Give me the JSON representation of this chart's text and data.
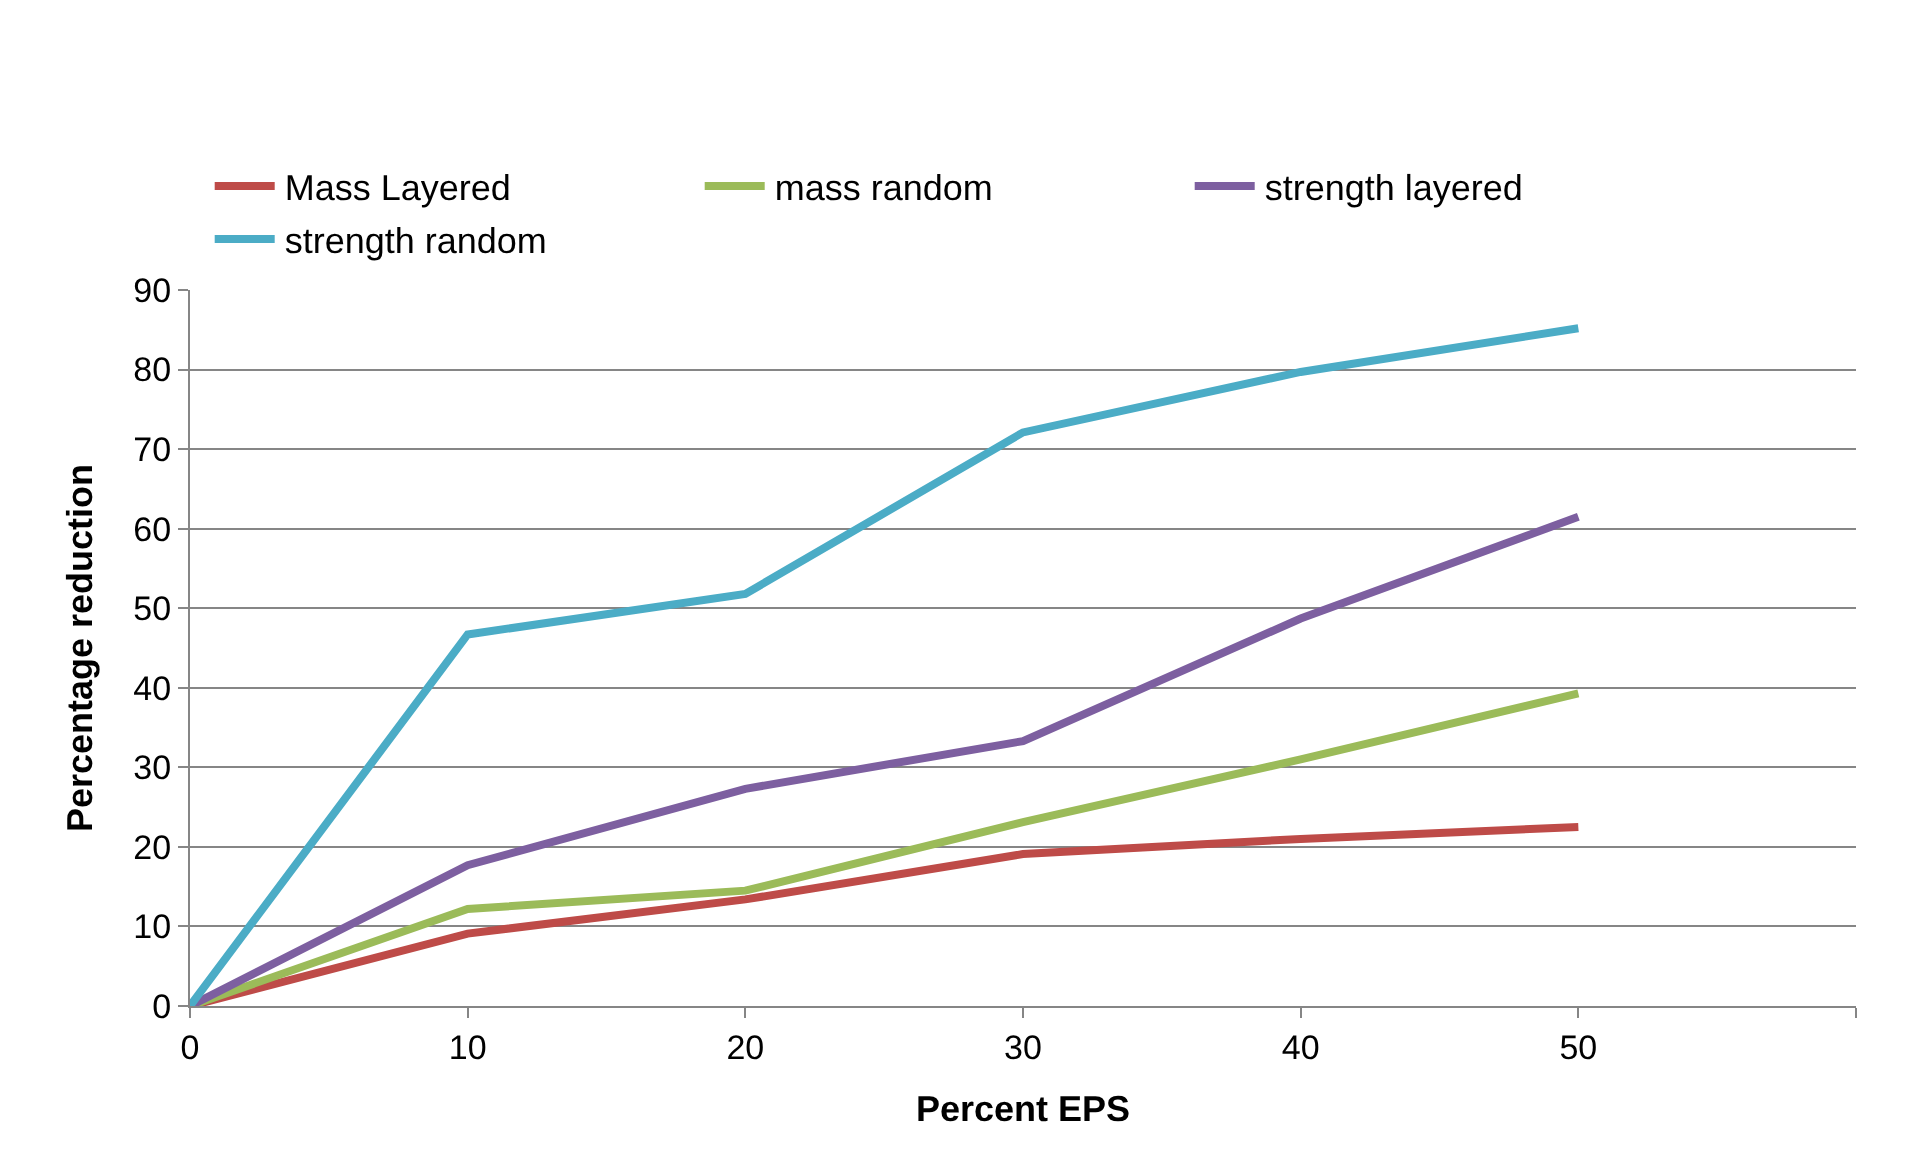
{
  "chart_data": {
    "type": "line",
    "xlabel": "Percent EPS",
    "ylabel": "Percentage reduction",
    "x": [
      0,
      10,
      20,
      30,
      40,
      50
    ],
    "series": [
      {
        "name": "Mass Layered",
        "color": "#be4b48",
        "values": [
          0,
          9.1,
          13.4,
          19.1,
          21,
          22.5
        ]
      },
      {
        "name": "mass random",
        "color": "#9bbb59",
        "values": [
          0,
          12.2,
          14.5,
          23.1,
          31,
          39.3
        ]
      },
      {
        "name": "strength layered",
        "color": "#7d5fa0",
        "values": [
          0,
          17.7,
          27.3,
          33.3,
          48.7,
          61.5
        ]
      },
      {
        "name": "strength random",
        "color": "#4bacc6",
        "values": [
          0,
          46.7,
          51.8,
          72.1,
          79.7,
          85.2
        ]
      }
    ],
    "xlim": [
      0,
      60
    ],
    "xticks": [
      0,
      10,
      20,
      30,
      40,
      50,
      {
        "value": 60,
        "label": null
      }
    ],
    "ylim": [
      0,
      90
    ],
    "yticks": [
      0,
      10,
      20,
      30,
      40,
      50,
      60,
      70,
      80,
      90
    ],
    "grid": "y",
    "legend": "top",
    "marker": "none",
    "line_style": "solid"
  }
}
